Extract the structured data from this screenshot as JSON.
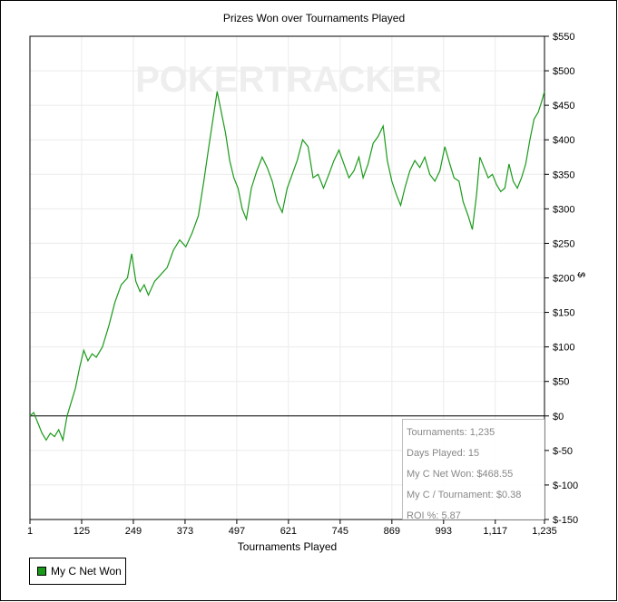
{
  "chart_data": {
    "type": "line",
    "title": "Prizes Won over Tournaments Played",
    "xlabel": "Tournaments Played",
    "ylabel": "$",
    "xlim": [
      1,
      1235
    ],
    "ylim": [
      -150,
      550
    ],
    "x_ticks": [
      "1",
      "125",
      "249",
      "373",
      "497",
      "621",
      "745",
      "869",
      "993",
      "1,117",
      "1,235"
    ],
    "y_ticks": [
      "$550",
      "$500",
      "$450",
      "$400",
      "$350",
      "$300",
      "$250",
      "$200",
      "$150",
      "$100",
      "$50",
      "$0",
      "$-50",
      "$-100",
      "$-150"
    ],
    "grid": true,
    "legend": "bottom-left",
    "watermark": "POKERTRACKER",
    "series": [
      {
        "name": "My C Net Won",
        "color": "#1a9a1a",
        "points": [
          [
            1,
            0
          ],
          [
            10,
            5
          ],
          [
            20,
            -10
          ],
          [
            30,
            -25
          ],
          [
            40,
            -35
          ],
          [
            50,
            -25
          ],
          [
            60,
            -30
          ],
          [
            70,
            -20
          ],
          [
            80,
            -35
          ],
          [
            90,
            0
          ],
          [
            100,
            20
          ],
          [
            110,
            40
          ],
          [
            120,
            70
          ],
          [
            130,
            95
          ],
          [
            140,
            80
          ],
          [
            150,
            90
          ],
          [
            160,
            85
          ],
          [
            175,
            100
          ],
          [
            190,
            130
          ],
          [
            205,
            165
          ],
          [
            220,
            190
          ],
          [
            235,
            200
          ],
          [
            245,
            235
          ],
          [
            255,
            195
          ],
          [
            265,
            180
          ],
          [
            275,
            190
          ],
          [
            285,
            175
          ],
          [
            300,
            195
          ],
          [
            315,
            205
          ],
          [
            330,
            215
          ],
          [
            345,
            240
          ],
          [
            360,
            255
          ],
          [
            375,
            245
          ],
          [
            390,
            265
          ],
          [
            405,
            290
          ],
          [
            418,
            340
          ],
          [
            430,
            390
          ],
          [
            440,
            430
          ],
          [
            450,
            470
          ],
          [
            460,
            440
          ],
          [
            470,
            410
          ],
          [
            480,
            370
          ],
          [
            490,
            345
          ],
          [
            500,
            330
          ],
          [
            510,
            300
          ],
          [
            520,
            285
          ],
          [
            532,
            330
          ],
          [
            545,
            355
          ],
          [
            558,
            375
          ],
          [
            570,
            360
          ],
          [
            582,
            340
          ],
          [
            594,
            310
          ],
          [
            606,
            295
          ],
          [
            618,
            330
          ],
          [
            630,
            350
          ],
          [
            642,
            370
          ],
          [
            655,
            400
          ],
          [
            668,
            390
          ],
          [
            680,
            345
          ],
          [
            692,
            350
          ],
          [
            705,
            330
          ],
          [
            718,
            350
          ],
          [
            730,
            370
          ],
          [
            742,
            385
          ],
          [
            754,
            365
          ],
          [
            766,
            345
          ],
          [
            778,
            355
          ],
          [
            790,
            375
          ],
          [
            800,
            345
          ],
          [
            812,
            365
          ],
          [
            824,
            395
          ],
          [
            836,
            405
          ],
          [
            848,
            420
          ],
          [
            858,
            370
          ],
          [
            869,
            340
          ],
          [
            880,
            320
          ],
          [
            890,
            305
          ],
          [
            900,
            330
          ],
          [
            912,
            355
          ],
          [
            924,
            370
          ],
          [
            936,
            360
          ],
          [
            948,
            375
          ],
          [
            960,
            350
          ],
          [
            972,
            340
          ],
          [
            984,
            355
          ],
          [
            996,
            390
          ],
          [
            1008,
            365
          ],
          [
            1018,
            345
          ],
          [
            1030,
            340
          ],
          [
            1040,
            310
          ],
          [
            1052,
            290
          ],
          [
            1062,
            270
          ],
          [
            1072,
            320
          ],
          [
            1080,
            375
          ],
          [
            1090,
            360
          ],
          [
            1100,
            345
          ],
          [
            1110,
            350
          ],
          [
            1120,
            335
          ],
          [
            1130,
            325
          ],
          [
            1140,
            330
          ],
          [
            1150,
            365
          ],
          [
            1160,
            340
          ],
          [
            1170,
            330
          ],
          [
            1180,
            345
          ],
          [
            1190,
            365
          ],
          [
            1200,
            400
          ],
          [
            1210,
            430
          ],
          [
            1220,
            440
          ],
          [
            1228,
            455
          ],
          [
            1235,
            470
          ]
        ]
      }
    ]
  },
  "stats": {
    "tournaments": "Tournaments: 1,235",
    "days_played": "Days Played: 15",
    "net_won": "My C Net Won: $468.55",
    "per_tournament": "My C / Tournament: $0.38",
    "roi": "ROI %: 5.87"
  },
  "legend_label": "My C Net Won"
}
